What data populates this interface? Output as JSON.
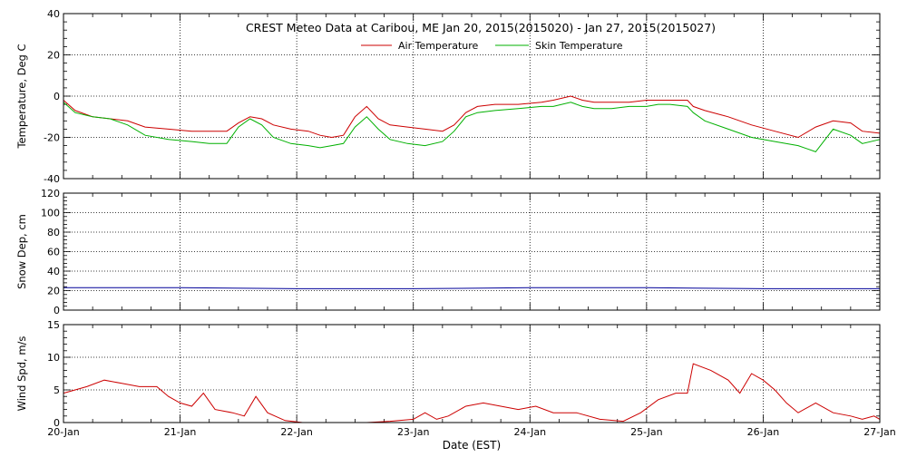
{
  "title": "CREST Meteo Data at Caribou, ME   Jan 20, 2015(2015020) - Jan 27, 2015(2015027)",
  "xlabel": "Date (EST)",
  "x_ticks": [
    "20-Jan",
    "21-Jan",
    "22-Jan",
    "23-Jan",
    "24-Jan",
    "25-Jan",
    "26-Jan",
    "27-Jan"
  ],
  "colors": {
    "air": "#cc0000",
    "skin": "#00b000",
    "snow": "#000099",
    "wind": "#cc0000",
    "grid": "#000000"
  },
  "chart_data": [
    {
      "type": "line",
      "ylabel": "Temperature, Deg C",
      "xlim": [
        0,
        7
      ],
      "ylim": [
        -40,
        40
      ],
      "yticks": [
        -40,
        -20,
        0,
        20,
        40
      ],
      "grid": true,
      "legend": "top-center",
      "series": [
        {
          "name": "Air Temperature",
          "x": [
            0,
            0.1,
            0.25,
            0.4,
            0.55,
            0.7,
            0.9,
            1.1,
            1.25,
            1.4,
            1.5,
            1.6,
            1.7,
            1.8,
            1.95,
            2.1,
            2.2,
            2.3,
            2.4,
            2.5,
            2.6,
            2.7,
            2.8,
            2.95,
            3.1,
            3.25,
            3.35,
            3.45,
            3.55,
            3.7,
            3.9,
            4.1,
            4.2,
            4.35,
            4.45,
            4.55,
            4.7,
            4.85,
            5.0,
            5.1,
            5.2,
            5.35,
            5.4,
            5.5,
            5.7,
            5.9,
            6.1,
            6.3,
            6.45,
            6.6,
            6.75,
            6.85,
            7.0
          ],
          "values": [
            -2,
            -7,
            -10,
            -11,
            -12,
            -15,
            -16,
            -17,
            -17,
            -17,
            -13,
            -10,
            -11,
            -14,
            -16,
            -17,
            -19,
            -20,
            -19,
            -10,
            -5,
            -11,
            -14,
            -15,
            -16,
            -17,
            -14,
            -8,
            -5,
            -4,
            -4,
            -3,
            -2,
            0,
            -2,
            -3,
            -3,
            -3,
            -2,
            -2,
            -2,
            -2,
            -5,
            -7,
            -10,
            -14,
            -17,
            -20,
            -15,
            -12,
            -13,
            -17,
            -18
          ]
        },
        {
          "name": "Skin Temperature",
          "x": [
            0,
            0.1,
            0.25,
            0.4,
            0.55,
            0.7,
            0.9,
            1.1,
            1.25,
            1.4,
            1.5,
            1.6,
            1.7,
            1.8,
            1.95,
            2.1,
            2.2,
            2.3,
            2.4,
            2.5,
            2.6,
            2.7,
            2.8,
            2.95,
            3.1,
            3.25,
            3.35,
            3.45,
            3.55,
            3.7,
            3.9,
            4.1,
            4.2,
            4.35,
            4.45,
            4.55,
            4.7,
            4.85,
            5.0,
            5.1,
            5.2,
            5.35,
            5.4,
            5.5,
            5.7,
            5.9,
            6.1,
            6.3,
            6.45,
            6.6,
            6.75,
            6.85,
            7.0
          ],
          "values": [
            -3,
            -8,
            -10,
            -11,
            -14,
            -19,
            -21,
            -22,
            -23,
            -23,
            -15,
            -11,
            -14,
            -20,
            -23,
            -24,
            -25,
            -24,
            -23,
            -15,
            -10,
            -16,
            -21,
            -23,
            -24,
            -22,
            -17,
            -10,
            -8,
            -7,
            -6,
            -5,
            -5,
            -3,
            -5,
            -6,
            -6,
            -5,
            -5,
            -4,
            -4,
            -5,
            -8,
            -12,
            -16,
            -20,
            -22,
            -24,
            -27,
            -16,
            -19,
            -23,
            -21
          ]
        }
      ]
    },
    {
      "type": "line",
      "ylabel": "Snow Dep, cm",
      "xlim": [
        0,
        7
      ],
      "ylim": [
        0,
        120
      ],
      "yticks": [
        0,
        20,
        40,
        60,
        80,
        100,
        120
      ],
      "grid": true,
      "series": [
        {
          "x": [
            0,
            1,
            2,
            3,
            4,
            5,
            6,
            7
          ],
          "values": [
            23,
            23,
            22,
            22,
            23,
            23,
            22,
            22
          ]
        }
      ]
    },
    {
      "type": "line",
      "ylabel": "Wind Spd, m/s",
      "xlim": [
        0,
        7
      ],
      "ylim": [
        0,
        15
      ],
      "yticks": [
        0,
        5,
        10,
        15
      ],
      "grid": true,
      "series": [
        {
          "x": [
            0,
            0.1,
            0.2,
            0.35,
            0.5,
            0.65,
            0.8,
            0.9,
            1.0,
            1.1,
            1.2,
            1.3,
            1.45,
            1.55,
            1.65,
            1.75,
            1.9,
            2.05,
            2.3,
            2.6,
            2.8,
            3.0,
            3.1,
            3.2,
            3.3,
            3.45,
            3.6,
            3.75,
            3.9,
            4.05,
            4.2,
            4.4,
            4.6,
            4.8,
            4.95,
            5.1,
            5.25,
            5.35,
            5.4,
            5.55,
            5.7,
            5.8,
            5.9,
            6.0,
            6.1,
            6.2,
            6.3,
            6.45,
            6.6,
            6.75,
            6.85,
            6.95,
            7.0
          ],
          "values": [
            4.5,
            5,
            5.5,
            6.5,
            6,
            5.5,
            5.5,
            4,
            3,
            2.5,
            4.5,
            2,
            1.5,
            1,
            4,
            1.5,
            0.3,
            0,
            0,
            0,
            0.2,
            0.5,
            1.5,
            0.5,
            1,
            2.5,
            3,
            2.5,
            2,
            2.5,
            1.5,
            1.5,
            0.5,
            0.2,
            1.5,
            3.5,
            4.5,
            4.5,
            9,
            8,
            6.5,
            4.5,
            7.5,
            6.5,
            5,
            3,
            1.5,
            3,
            1.5,
            1,
            0.5,
            1,
            0.5
          ]
        }
      ]
    }
  ]
}
